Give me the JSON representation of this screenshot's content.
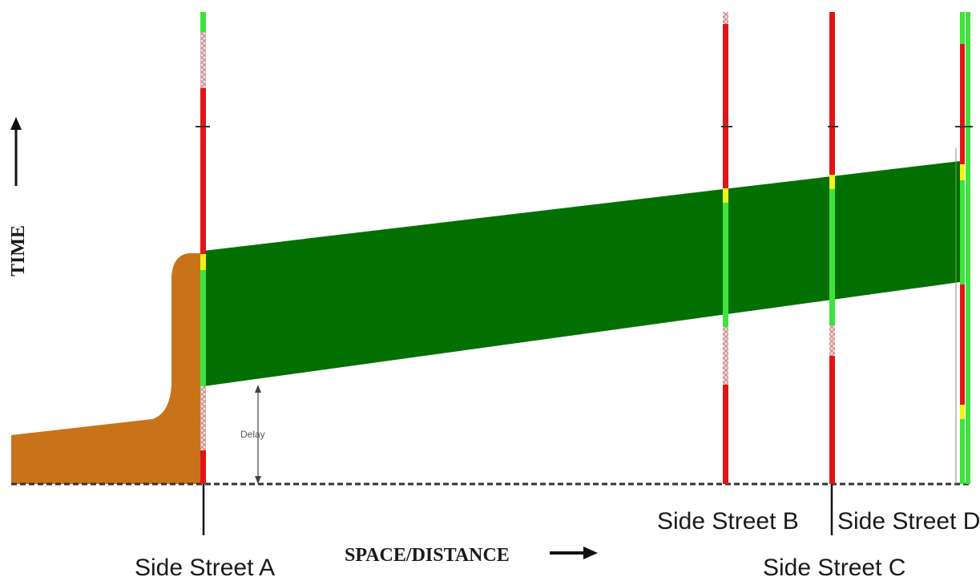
{
  "axis": {
    "y_label": "TIME",
    "x_label": "SPACE/DISTANCE"
  },
  "annotation": {
    "delay_label": "Delay"
  },
  "streets": {
    "a": "Side Street A",
    "b": "Side Street B",
    "c": "Side Street C",
    "d": "Side Street D"
  },
  "colors": {
    "green_band": "#037003",
    "queue": "#c8731a",
    "signal_red": "#e01616",
    "signal_green": "#3fe23f",
    "signal_yellow": "#f2f21a",
    "baseline": "#333333"
  }
}
